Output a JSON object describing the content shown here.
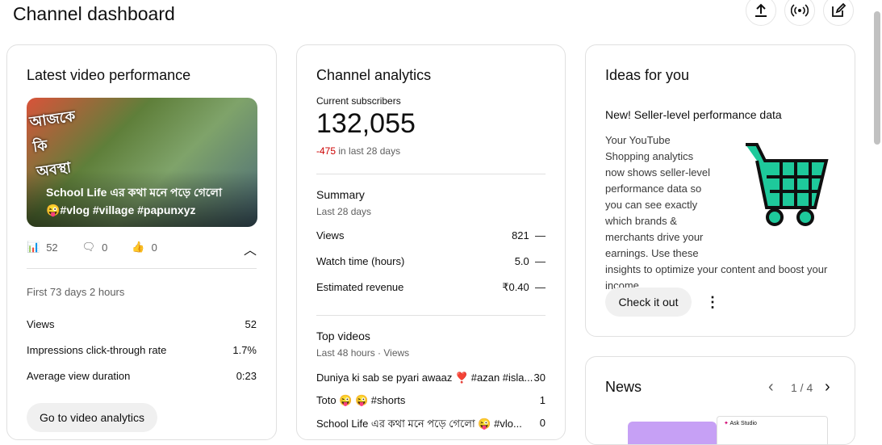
{
  "header": {
    "title": "Channel dashboard",
    "buttons": [
      "upload-icon",
      "go-live-icon",
      "create-post-icon"
    ]
  },
  "latest": {
    "title": "Latest video performance",
    "thumb_text_line1": "School Life এর কথা মনে পড়ে গেলো",
    "thumb_text_line2": "😜#vlog #village #papunxyz",
    "thumb_overlay": "আজকে কি অবস্থা",
    "views": "52",
    "comments": "0",
    "likes": "0",
    "period": "First 73 days 2 hours",
    "stats": [
      {
        "label": "Views",
        "value": "52"
      },
      {
        "label": "Impressions click-through rate",
        "value": "1.7%"
      },
      {
        "label": "Average view duration",
        "value": "0:23"
      }
    ],
    "button": "Go to video analytics"
  },
  "analytics": {
    "title": "Channel analytics",
    "subs_label": "Current subscribers",
    "subs": "132,055",
    "subs_change": "-475",
    "subs_change_suffix": " in last 28 days",
    "change_color": "#cc0000",
    "summary_title": "Summary",
    "summary_period": "Last 28 days",
    "summary": [
      {
        "label": "Views",
        "value": "821",
        "trend": "—"
      },
      {
        "label": "Watch time (hours)",
        "value": "5.0",
        "trend": "—"
      },
      {
        "label": "Estimated revenue",
        "value": "₹0.40",
        "trend": "—"
      }
    ],
    "top_title": "Top videos",
    "top_period": "Last 48 hours · Views",
    "top": [
      {
        "label": "Duniya ki sab se pyari awaaz ❣️ #azan #isla...",
        "value": "30"
      },
      {
        "label": "Toto 😜 😜 #shorts",
        "value": "1"
      },
      {
        "label": "School Life এর কথা মনে পড়ে গেলো 😜 #vlo...",
        "value": "0"
      }
    ]
  },
  "ideas": {
    "title": "Ideas for you",
    "headline": "New! Seller-level performance data",
    "body": "Your YouTube Shopping analytics now shows seller-level performance data so you can see exactly which brands & merchants drive your earnings. Use these insights to optimize your content and boost your income.",
    "button": "Check it out",
    "cart_color": "#1ec99b"
  },
  "news": {
    "title": "News",
    "page": "1 / 4",
    "preview_label": "Ask Studio"
  }
}
